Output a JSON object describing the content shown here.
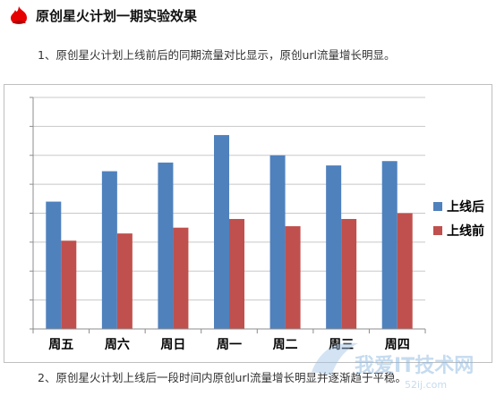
{
  "heading": {
    "title": "原创星火计划一期实验效果",
    "icon": "red-flame-icon"
  },
  "paragraphs": {
    "p1": "1、原创星火计划上线前后的同期流量对比显示，原创url流量增长明显。",
    "p2": "2、原创星火计划上线后一段时间内原创url流量增长明显并逐渐趋于平稳。"
  },
  "colors": {
    "after": "#4f81bd",
    "before": "#c0504d",
    "grid": "#c8c8c8",
    "axis": "#8c8c8c",
    "icon": "#e60000"
  },
  "chart_data": {
    "type": "bar",
    "categories": [
      "周五",
      "周六",
      "周日",
      "周一",
      "周二",
      "周三",
      "周四"
    ],
    "series": [
      {
        "name": "上线后",
        "values": [
          4.4,
          5.45,
          5.75,
          6.7,
          6.0,
          5.65,
          5.8
        ]
      },
      {
        "name": "上线前",
        "values": [
          3.05,
          3.3,
          3.5,
          3.8,
          3.55,
          3.8,
          4.0
        ]
      }
    ],
    "ylim": [
      0,
      8
    ],
    "y_ticks": [
      0,
      1,
      2,
      3,
      4,
      5,
      6,
      7,
      8
    ],
    "y_tick_labels_visible": false,
    "grid": true,
    "legend": "right"
  },
  "watermark": {
    "text": "我爱IT技术网",
    "sub": "52ij.com"
  }
}
